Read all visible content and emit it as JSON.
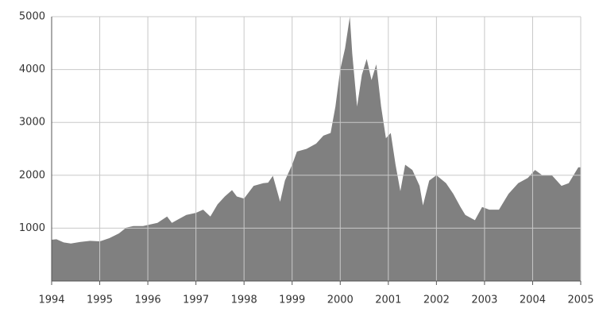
{
  "chart_data": {
    "type": "area",
    "color": "#808080",
    "grid": true,
    "xlim": [
      1994,
      2005
    ],
    "xticks": [
      1994,
      1995,
      1996,
      1997,
      1998,
      1999,
      2000,
      2001,
      2002,
      2003,
      2004,
      2005
    ],
    "ylim": [
      0,
      5000
    ],
    "yticks": [
      1000,
      2000,
      3000,
      4000,
      5000
    ],
    "x": [
      1994.0,
      1994.1,
      1994.25,
      1994.4,
      1994.6,
      1994.8,
      1995.0,
      1995.2,
      1995.4,
      1995.55,
      1995.7,
      1995.9,
      1996.0,
      1996.2,
      1996.4,
      1996.5,
      1996.6,
      1996.8,
      1997.0,
      1997.15,
      1997.3,
      1997.45,
      1997.6,
      1997.75,
      1997.85,
      1998.0,
      1998.2,
      1998.4,
      1998.5,
      1998.6,
      1998.75,
      1998.85,
      1999.0,
      1999.1,
      1999.3,
      1999.5,
      1999.65,
      1999.8,
      1999.9,
      2000.0,
      2000.1,
      2000.2,
      2000.25,
      2000.35,
      2000.45,
      2000.55,
      2000.65,
      2000.75,
      2000.85,
      2000.95,
      2001.05,
      2001.15,
      2001.25,
      2001.35,
      2001.5,
      2001.65,
      2001.72,
      2001.85,
      2002.0,
      2002.2,
      2002.35,
      2002.5,
      2002.6,
      2002.8,
      2002.95,
      2003.1,
      2003.3,
      2003.5,
      2003.7,
      2003.9,
      2004.05,
      2004.2,
      2004.4,
      2004.6,
      2004.75,
      2004.95,
      2005.0
    ],
    "values": [
      780,
      790,
      730,
      710,
      740,
      760,
      750,
      810,
      900,
      1010,
      1040,
      1040,
      1060,
      1100,
      1220,
      1100,
      1150,
      1250,
      1290,
      1350,
      1220,
      1450,
      1600,
      1720,
      1600,
      1560,
      1800,
      1850,
      1860,
      1990,
      1500,
      1900,
      2200,
      2450,
      2500,
      2600,
      2750,
      2800,
      3300,
      4000,
      4400,
      5000,
      4300,
      3300,
      3900,
      4200,
      3800,
      4100,
      3300,
      2700,
      2800,
      2200,
      1700,
      2200,
      2100,
      1800,
      1430,
      1900,
      2000,
      1850,
      1650,
      1400,
      1250,
      1150,
      1400,
      1350,
      1350,
      1650,
      1850,
      1950,
      2100,
      2000,
      2000,
      1800,
      1850,
      2150,
      2150
    ]
  }
}
